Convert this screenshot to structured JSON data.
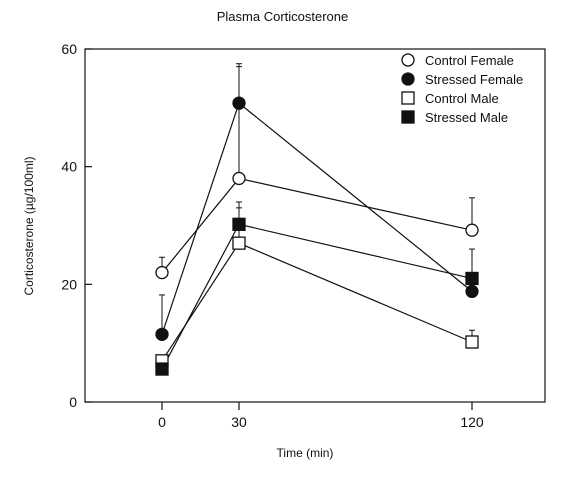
{
  "chart_data": {
    "type": "line",
    "title": "Plasma Corticosterone",
    "xlabel": "Time (min)",
    "ylabel": "Corticosterone (µg/100ml)",
    "x": [
      0,
      30,
      120
    ],
    "x_tick_labels": [
      "0",
      "30",
      "120"
    ],
    "ylim": [
      0,
      60
    ],
    "y_ticks": [
      0,
      20,
      40,
      60
    ],
    "grid": false,
    "legend_position": "top-right",
    "series": [
      {
        "name": "Control Female",
        "marker": "open-circle",
        "values": [
          22,
          38,
          29.2
        ],
        "error": [
          2.6,
          19,
          5.5
        ]
      },
      {
        "name": "Stressed Female",
        "marker": "filled-circle",
        "values": [
          11.5,
          50.8,
          18.8
        ],
        "error": [
          6.7,
          6.7,
          0
        ]
      },
      {
        "name": "Control Male",
        "marker": "open-square",
        "values": [
          7,
          27,
          10.2
        ],
        "error": [
          0,
          7,
          2
        ]
      },
      {
        "name": "Stressed Male",
        "marker": "filled-square",
        "values": [
          5.6,
          30.2,
          21
        ],
        "error": [
          0,
          2.8,
          5
        ]
      }
    ]
  }
}
